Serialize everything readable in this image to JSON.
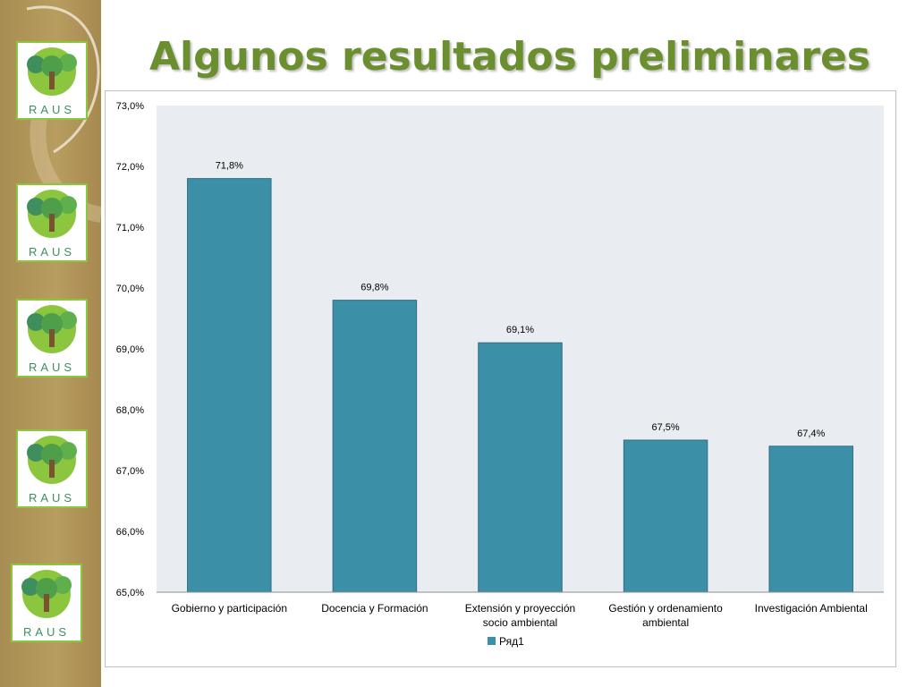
{
  "slide": {
    "title": "Algunos resultados preliminares",
    "logo_text": "RAUS"
  },
  "colors": {
    "bar": "#3b8fa6",
    "plot_bg": "#e9edf2",
    "title": "#6b8e2f",
    "sidebar": "#b0955a"
  },
  "chart_data": {
    "type": "bar",
    "categories": [
      "Gobierno y participación",
      "Docencia y Formación",
      "Extensión y proyección socio ambiental",
      "Gestión y ordenamiento ambiental",
      "Investigación Ambiental"
    ],
    "category_lines": [
      [
        "Gobierno y participación"
      ],
      [
        "Docencia y Formación"
      ],
      [
        "Extensión y proyección",
        "socio ambiental"
      ],
      [
        "Gestión y ordenamiento",
        "ambiental"
      ],
      [
        "Investigación Ambiental"
      ]
    ],
    "series": [
      {
        "name": "Ряд1",
        "values": [
          71.8,
          69.8,
          69.1,
          67.5,
          67.4
        ]
      }
    ],
    "data_labels": [
      "71,8%",
      "69,8%",
      "69,1%",
      "67,5%",
      "67,4%"
    ],
    "ylim": [
      65,
      73
    ],
    "yticks": [
      65,
      66,
      67,
      68,
      69,
      70,
      71,
      72,
      73
    ],
    "ytick_labels": [
      "65,0%",
      "66,0%",
      "67,0%",
      "68,0%",
      "69,0%",
      "70,0%",
      "71,0%",
      "72,0%",
      "73,0%"
    ],
    "legend_position": "bottom",
    "grid": false
  }
}
